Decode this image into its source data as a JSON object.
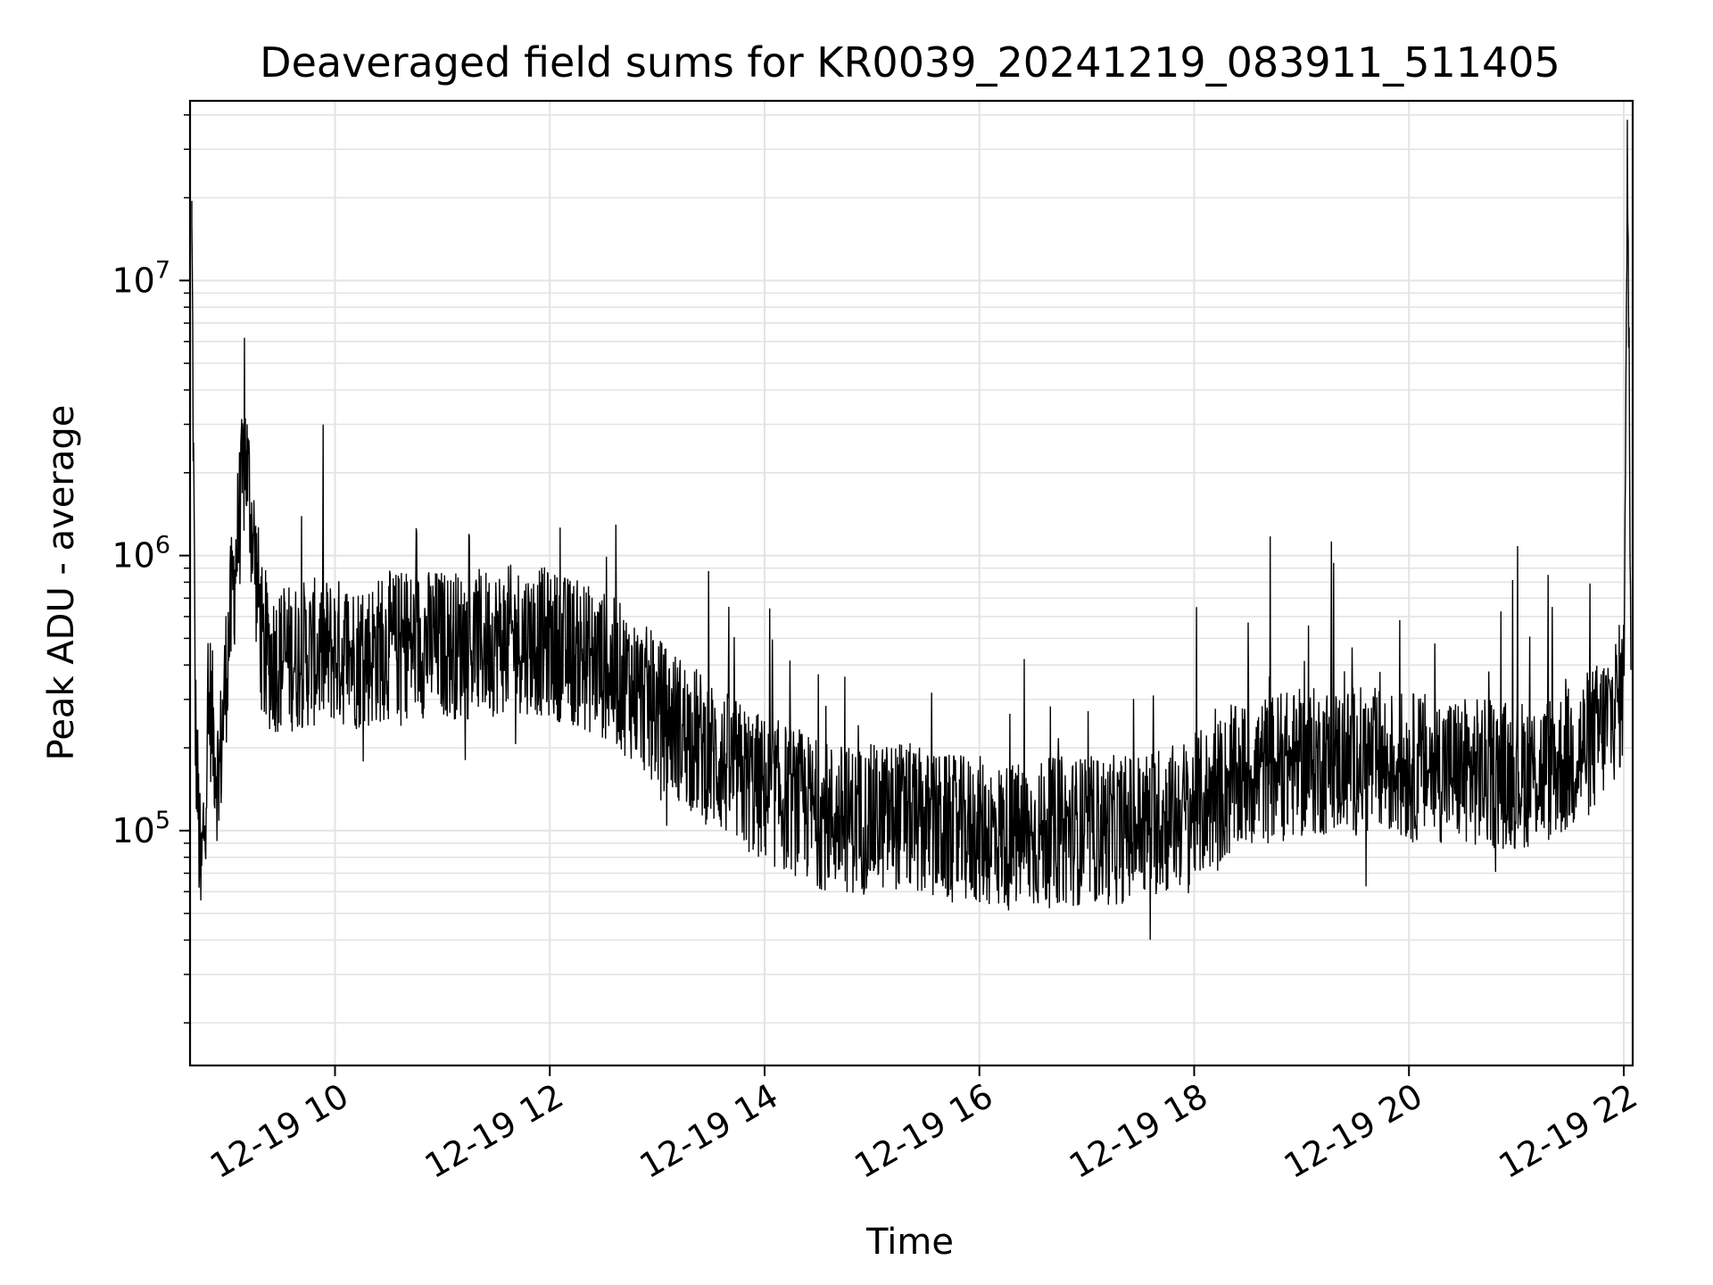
{
  "chart_data": {
    "type": "line",
    "title": "Deaveraged field sums for KR0039_20241219_083911_511405",
    "xlabel": "Time",
    "ylabel": "Peak ADU - average",
    "y_scale": "log",
    "grid": true,
    "line_color": "#000000",
    "grid_color": "#e3e3e3",
    "xlim": [
      "2024-12-19 08:39",
      "2024-12-19 22:05"
    ],
    "ylim": [
      14000,
      45000000
    ],
    "x_ticks": [
      {
        "value": "2024-12-19 10:00",
        "label": "12-19 10"
      },
      {
        "value": "2024-12-19 12:00",
        "label": "12-19 12"
      },
      {
        "value": "2024-12-19 14:00",
        "label": "12-19 14"
      },
      {
        "value": "2024-12-19 16:00",
        "label": "12-19 16"
      },
      {
        "value": "2024-12-19 18:00",
        "label": "12-19 18"
      },
      {
        "value": "2024-12-19 20:00",
        "label": "12-19 20"
      },
      {
        "value": "2024-12-19 22:00",
        "label": "12-19 22"
      }
    ],
    "y_ticks": [
      {
        "value": 100000,
        "base": "10",
        "exp": "5"
      },
      {
        "value": 1000000,
        "base": "10",
        "exp": "6"
      },
      {
        "value": 10000000,
        "base": "10",
        "exp": "7"
      }
    ],
    "series": [
      {
        "x": [
          "2024-12-19 08:40",
          "2024-12-19 08:42",
          "2024-12-19 08:45",
          "2024-12-19 08:50",
          "2024-12-19 08:55",
          "2024-12-19 09:00",
          "2024-12-19 09:10",
          "2024-12-19 09:20",
          "2024-12-19 09:30",
          "2024-12-19 09:45",
          "2024-12-19 10:00",
          "2024-12-19 10:15",
          "2024-12-19 10:30",
          "2024-12-19 10:45",
          "2024-12-19 11:00",
          "2024-12-19 11:15",
          "2024-12-19 11:30",
          "2024-12-19 11:45",
          "2024-12-19 12:00",
          "2024-12-19 12:15",
          "2024-12-19 12:30",
          "2024-12-19 12:45",
          "2024-12-19 13:00",
          "2024-12-19 13:15",
          "2024-12-19 13:30",
          "2024-12-19 13:45",
          "2024-12-19 14:00",
          "2024-12-19 14:15",
          "2024-12-19 14:30",
          "2024-12-19 14:45",
          "2024-12-19 15:00",
          "2024-12-19 15:15",
          "2024-12-19 15:30",
          "2024-12-19 15:45",
          "2024-12-19 16:00",
          "2024-12-19 16:15",
          "2024-12-19 16:30",
          "2024-12-19 16:45",
          "2024-12-19 17:00",
          "2024-12-19 17:15",
          "2024-12-19 17:30",
          "2024-12-19 17:45",
          "2024-12-19 18:00",
          "2024-12-19 18:15",
          "2024-12-19 18:30",
          "2024-12-19 18:45",
          "2024-12-19 19:00",
          "2024-12-19 19:15",
          "2024-12-19 19:30",
          "2024-12-19 19:45",
          "2024-12-19 20:00",
          "2024-12-19 20:15",
          "2024-12-19 20:30",
          "2024-12-19 20:45",
          "2024-12-19 21:00",
          "2024-12-19 21:15",
          "2024-12-19 21:30",
          "2024-12-19 21:45",
          "2024-12-19 21:55",
          "2024-12-19 22:00",
          "2024-12-19 22:02",
          "2024-12-19 22:04"
        ],
        "y": [
          16000000,
          250000,
          60000,
          300000,
          150000,
          450000,
          2400000,
          430000,
          420000,
          440000,
          450000,
          430000,
          470000,
          480000,
          480000,
          470000,
          490000,
          500000,
          480000,
          440000,
          400000,
          340000,
          270000,
          230000,
          190000,
          160000,
          140000,
          130000,
          115000,
          110000,
          110000,
          115000,
          105000,
          100000,
          100000,
          95000,
          95000,
          100000,
          100000,
          100000,
          105000,
          110000,
          120000,
          140000,
          160000,
          170000,
          175000,
          180000,
          180000,
          175000,
          170000,
          170000,
          165000,
          160000,
          160000,
          165000,
          180000,
          220000,
          280000,
          330000,
          32000000,
          500000
        ]
      }
    ]
  }
}
